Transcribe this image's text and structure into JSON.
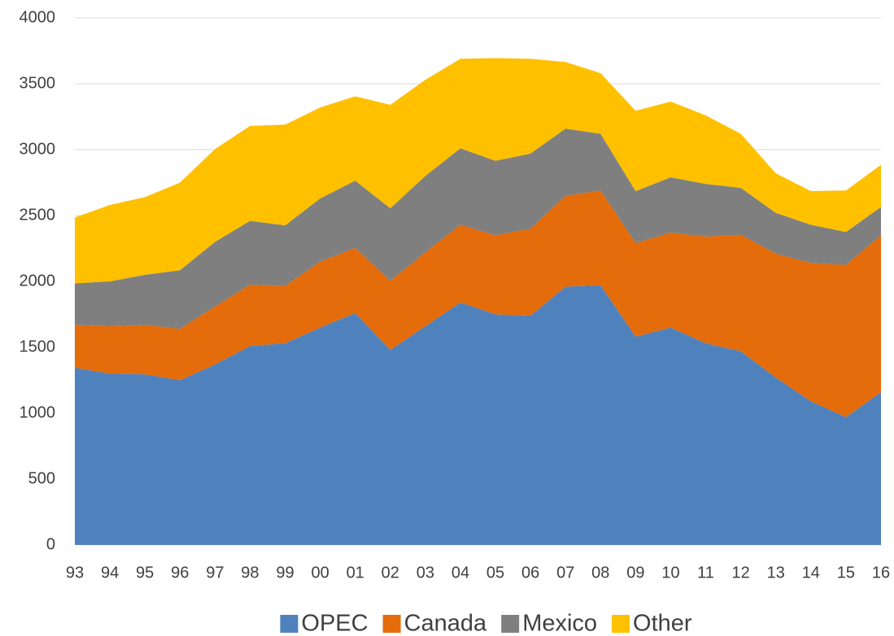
{
  "chart_data": {
    "type": "stacked_area",
    "categories": [
      "93",
      "94",
      "95",
      "96",
      "97",
      "98",
      "99",
      "00",
      "01",
      "02",
      "03",
      "04",
      "05",
      "06",
      "07",
      "08",
      "09",
      "10",
      "11",
      "12",
      "13",
      "14",
      "15",
      "16"
    ],
    "series": [
      {
        "name": "OPEC",
        "color": "#4f81bd",
        "values": [
          1345,
          1300,
          1295,
          1250,
          1370,
          1510,
          1530,
          1650,
          1760,
          1480,
          1660,
          1840,
          1750,
          1740,
          1960,
          1970,
          1580,
          1650,
          1530,
          1470,
          1270,
          1090,
          970,
          1160
        ]
      },
      {
        "name": "Canada",
        "color": "#e46c0a",
        "values": [
          325,
          360,
          375,
          390,
          440,
          465,
          435,
          500,
          495,
          525,
          560,
          590,
          600,
          660,
          690,
          720,
          710,
          720,
          810,
          885,
          940,
          1050,
          1155,
          1190
        ]
      },
      {
        "name": "Mexico",
        "color": "#7f7f7f",
        "values": [
          315,
          340,
          380,
          445,
          490,
          485,
          460,
          480,
          510,
          550,
          580,
          580,
          565,
          570,
          510,
          430,
          395,
          420,
          400,
          355,
          310,
          290,
          250,
          215
        ]
      },
      {
        "name": "Other",
        "color": "#ffc000",
        "values": [
          500,
          580,
          590,
          665,
          705,
          720,
          765,
          690,
          640,
          785,
          730,
          680,
          780,
          720,
          505,
          460,
          610,
          575,
          520,
          410,
          300,
          255,
          315,
          320
        ]
      }
    ],
    "ylim": [
      0,
      4000
    ],
    "yticks": [
      0,
      500,
      1000,
      1500,
      2000,
      2500,
      3000,
      3500,
      4000
    ],
    "grid": true,
    "legend": "bottom"
  }
}
